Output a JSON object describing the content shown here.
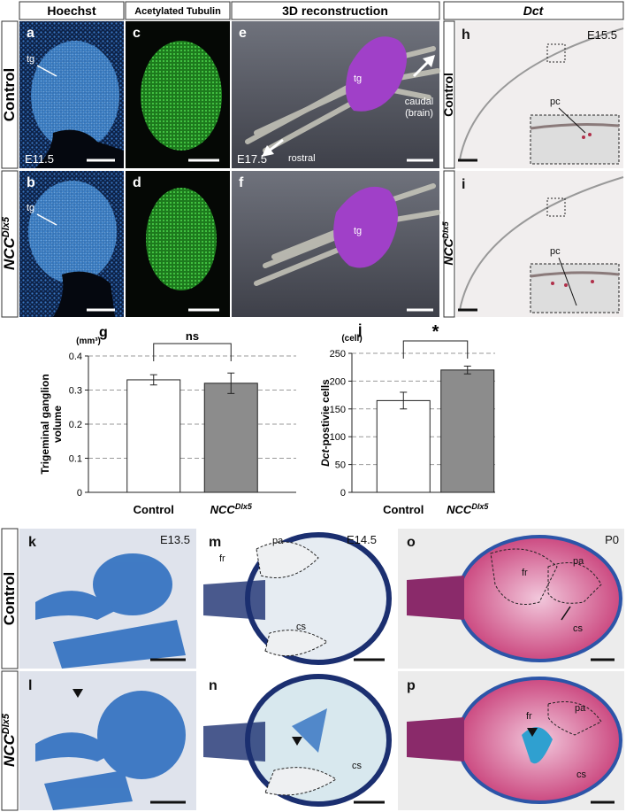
{
  "column_headers": [
    "Hoechst",
    "Acetylated Tubulin",
    "3D reconstruction",
    "Dct"
  ],
  "row_labels": {
    "control": "Control",
    "mutant": {
      "base": "NCC",
      "sup": "Dlx5"
    }
  },
  "panels": {
    "a": {
      "letter": "a",
      "labels": [
        "tg",
        "E11.5"
      ]
    },
    "b": {
      "letter": "b",
      "labels": [
        "tg"
      ]
    },
    "c": {
      "letter": "c"
    },
    "d": {
      "letter": "d"
    },
    "e": {
      "letter": "e",
      "labels": [
        "tg",
        "caudal",
        "(brain)",
        "rostral",
        "E17.5"
      ]
    },
    "f": {
      "letter": "f",
      "labels": [
        "tg"
      ]
    },
    "h": {
      "letter": "h",
      "labels": [
        "E15.5",
        "pc"
      ]
    },
    "i": {
      "letter": "i",
      "labels": [
        "pc"
      ]
    },
    "k": {
      "letter": "k",
      "labels": [
        "E13.5"
      ]
    },
    "l": {
      "letter": "l"
    },
    "m": {
      "letter": "m",
      "labels": [
        "E14.5",
        "fr",
        "pa",
        "cs"
      ]
    },
    "n": {
      "letter": "n",
      "labels": [
        "cs"
      ]
    },
    "o": {
      "letter": "o",
      "labels": [
        "P0",
        "fr",
        "pa",
        "cs"
      ]
    },
    "p": {
      "letter": "p",
      "labels": [
        "fr",
        "pa",
        "cs"
      ]
    }
  },
  "chart_data": [
    {
      "type": "bar",
      "letter": "g",
      "unit": "(mm³)",
      "y_label": [
        "Trigeminal ganglion",
        "volume"
      ],
      "categories": [
        "Control",
        {
          "base": "NCC",
          "sup": "Dlx5"
        }
      ],
      "values": [
        0.33,
        0.32
      ],
      "errors": [
        0.015,
        0.03
      ],
      "colors": [
        "#ffffff",
        "#8c8c8c"
      ],
      "ylim": [
        0,
        0.4
      ],
      "yticks": [
        0,
        0.1,
        0.2,
        0.3,
        0.4
      ],
      "grid": true,
      "annotation": "ns"
    },
    {
      "type": "bar",
      "letter": "j",
      "unit": "(cell)",
      "y_label": [
        {
          "italic": "Dct",
          "rest": "-postivie cells"
        }
      ],
      "categories": [
        "Control",
        {
          "base": "NCC",
          "sup": "Dlx5"
        }
      ],
      "values": [
        165,
        220
      ],
      "errors": [
        15,
        7
      ],
      "colors": [
        "#ffffff",
        "#8c8c8c"
      ],
      "ylim": [
        0,
        250
      ],
      "yticks": [
        0,
        50,
        100,
        150,
        200,
        250
      ],
      "grid": true,
      "annotation": "*"
    }
  ]
}
